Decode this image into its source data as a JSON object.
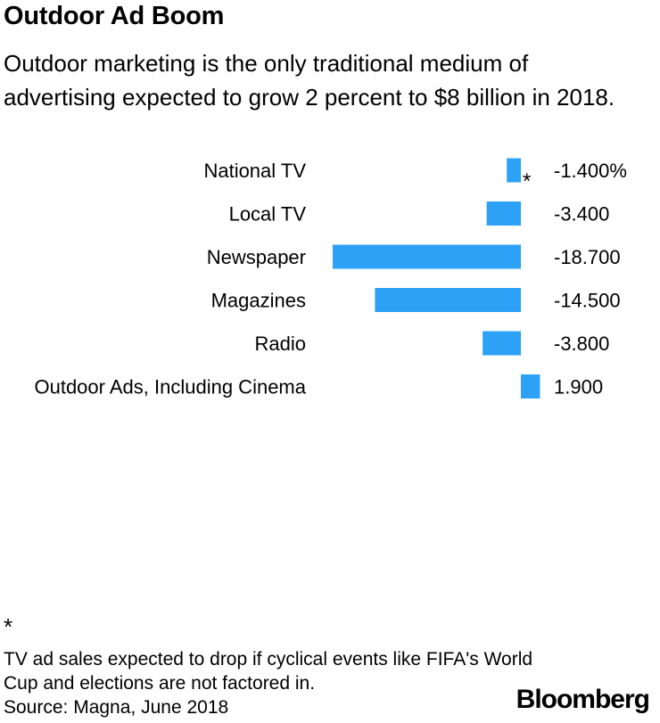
{
  "header": {
    "title": "Outdoor Ad Boom",
    "subtitle": "Outdoor marketing is the only traditional medium of advertising expected to grow 2 percent to $8 billion in 2018."
  },
  "chart_data": {
    "type": "bar",
    "orientation": "horizontal",
    "categories": [
      "National TV",
      "Local TV",
      "Newspaper",
      "Magazines",
      "Radio",
      "Outdoor Ads, Including Cinema"
    ],
    "values": [
      -1.4,
      -3.4,
      -18.7,
      -14.5,
      -3.8,
      1.9
    ],
    "value_labels": [
      "-1.400%",
      "-3.400",
      "-18.700",
      "-14.500",
      "-3.800",
      "1.900"
    ],
    "annotations": [
      {
        "category": "National TV",
        "text": "*"
      }
    ],
    "bar_color": "#2da1f5",
    "xlim": [
      -18.7,
      1.9
    ],
    "grid": false,
    "legend": "none"
  },
  "footer": {
    "footnote_mark": "*",
    "footnote": "TV ad sales expected to drop if cyclical events like FIFA's World Cup and elections are not factored in.",
    "source": "Source: Magna, June 2018",
    "logo": "Bloomberg"
  }
}
